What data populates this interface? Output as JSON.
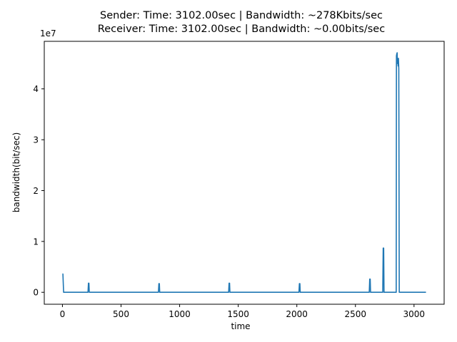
{
  "chart_data": {
    "type": "line",
    "title_lines": [
      "Sender: Time: 3102.00sec | Bandwidth: ~278Kbits/sec",
      "Receiver: Time: 3102.00sec | Bandwidth: ~0.00bits/sec"
    ],
    "xlabel": "time",
    "ylabel": "bandwidth(bit/sec)",
    "y_offset_label": "1e7",
    "xlim": [
      -155,
      3257
    ],
    "ylim": [
      -2350000,
      49350000
    ],
    "x_ticks": [
      0,
      500,
      1000,
      1500,
      2000,
      2500,
      3000
    ],
    "x_tick_labels": [
      "0",
      "500",
      "1000",
      "1500",
      "2000",
      "2500",
      "3000"
    ],
    "y_ticks": [
      0,
      10000000,
      20000000,
      30000000,
      40000000
    ],
    "y_tick_labels": [
      "0",
      "1",
      "2",
      "3",
      "4"
    ],
    "series": [
      {
        "color": "#1f77b4",
        "x": [
          0,
          4,
          10,
          218,
          222,
          226,
          229,
          819,
          823,
          827,
          830,
          1418,
          1422,
          1426,
          1429,
          2018,
          2022,
          2026,
          2029,
          2618,
          2622,
          2626,
          2629,
          2733,
          2737,
          2741,
          2744,
          2848,
          2850,
          2853,
          2856,
          2858,
          2861,
          2864,
          2867,
          2870,
          2874,
          2878,
          3102
        ],
        "y": [
          3600000,
          3600000,
          0,
          0,
          1800000,
          1800000,
          0,
          0,
          1700000,
          1700000,
          0,
          0,
          1800000,
          1800000,
          0,
          0,
          1700000,
          1700000,
          0,
          0,
          2600000,
          2600000,
          0,
          0,
          8700000,
          8700000,
          0,
          0,
          46500000,
          46900000,
          47100000,
          45000000,
          46000000,
          44500000,
          46000000,
          44000000,
          0,
          0,
          0
        ]
      }
    ],
    "grid": false,
    "legend": "none"
  }
}
